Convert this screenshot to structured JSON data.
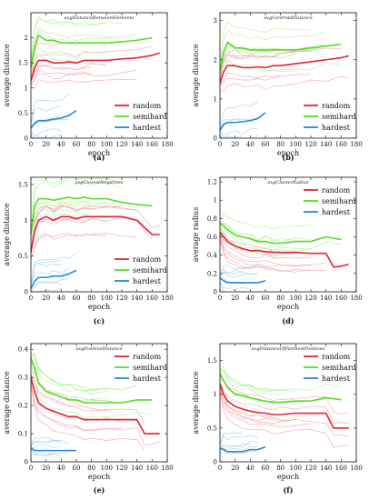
{
  "colors": {
    "random": "#e8213a",
    "semihard": "#55dd22",
    "hardest": "#2288dd"
  },
  "chart_data": [
    {
      "type": "line",
      "title": "avgDistanceBetweenElements",
      "caption": "(a)",
      "xlabel": "epoch",
      "ylabel": "average distance",
      "xlim": [
        0,
        180
      ],
      "ylim": [
        0,
        2.5
      ],
      "xticks": [
        "0",
        "20",
        "40",
        "60",
        "80",
        "100",
        "120",
        "140",
        "160",
        "180"
      ],
      "yticks": [
        "0",
        "0.5",
        "1",
        "1.5",
        "2"
      ],
      "ytick_values": [
        0,
        0.5,
        1,
        1.5,
        2
      ],
      "legend_position": "lower-right",
      "series": [
        {
          "name": "random",
          "x": [
            0,
            5,
            10,
            20,
            30,
            40,
            50,
            60,
            70,
            80,
            100,
            120,
            140,
            160,
            170
          ],
          "y": [
            1.15,
            1.4,
            1.55,
            1.55,
            1.5,
            1.5,
            1.52,
            1.5,
            1.55,
            1.55,
            1.55,
            1.58,
            1.6,
            1.65,
            1.7
          ]
        },
        {
          "name": "semihard",
          "x": [
            0,
            5,
            10,
            20,
            30,
            40,
            50,
            60,
            70,
            80,
            100,
            120,
            140,
            160
          ],
          "y": [
            1.4,
            1.8,
            2.05,
            1.95,
            1.95,
            1.9,
            1.9,
            1.9,
            1.9,
            1.9,
            1.9,
            1.92,
            1.95,
            2.0
          ]
        },
        {
          "name": "hardest",
          "x": [
            0,
            5,
            10,
            20,
            30,
            40,
            50,
            60
          ],
          "y": [
            0.2,
            0.3,
            0.35,
            0.35,
            0.38,
            0.4,
            0.45,
            0.55
          ]
        }
      ]
    },
    {
      "type": "line",
      "title": "avgCentroidDistance",
      "caption": "(b)",
      "xlabel": "epoch",
      "ylabel": "average distance",
      "xlim": [
        0,
        180
      ],
      "ylim": [
        0,
        3.2
      ],
      "xticks": [
        "0",
        "20",
        "40",
        "60",
        "80",
        "100",
        "120",
        "140",
        "160",
        "180"
      ],
      "yticks": [
        "0",
        "1",
        "2",
        "3"
      ],
      "ytick_values": [
        0,
        1,
        2,
        3
      ],
      "legend_position": "lower-right",
      "series": [
        {
          "name": "random",
          "x": [
            0,
            5,
            10,
            20,
            30,
            40,
            50,
            60,
            70,
            80,
            100,
            120,
            140,
            160,
            170
          ],
          "y": [
            1.4,
            1.7,
            1.85,
            1.85,
            1.8,
            1.8,
            1.82,
            1.8,
            1.85,
            1.85,
            1.9,
            1.95,
            2.0,
            2.05,
            2.1
          ]
        },
        {
          "name": "semihard",
          "x": [
            0,
            5,
            10,
            20,
            30,
            40,
            50,
            60,
            70,
            80,
            100,
            120,
            140,
            160
          ],
          "y": [
            1.7,
            2.2,
            2.45,
            2.3,
            2.3,
            2.25,
            2.25,
            2.25,
            2.25,
            2.25,
            2.25,
            2.3,
            2.35,
            2.4
          ]
        },
        {
          "name": "hardest",
          "x": [
            0,
            5,
            10,
            20,
            30,
            40,
            50,
            60
          ],
          "y": [
            0.2,
            0.35,
            0.4,
            0.4,
            0.42,
            0.45,
            0.5,
            0.65
          ]
        }
      ]
    },
    {
      "type": "line",
      "title": "avgClosestNegatives",
      "caption": "(c)",
      "xlabel": "epoch",
      "ylabel": "average distance",
      "xlim": [
        0,
        180
      ],
      "ylim": [
        0,
        1.6
      ],
      "xticks": [
        "0",
        "20",
        "40",
        "60",
        "80",
        "100",
        "120",
        "140",
        "160",
        "180"
      ],
      "yticks": [
        "0",
        "0.5",
        "1",
        "1.5"
      ],
      "ytick_values": [
        0,
        0.5,
        1,
        1.5
      ],
      "legend_position": "lower-right",
      "series": [
        {
          "name": "random",
          "x": [
            0,
            5,
            10,
            20,
            30,
            40,
            50,
            60,
            70,
            80,
            100,
            120,
            140,
            160,
            170
          ],
          "y": [
            0.55,
            0.85,
            1.0,
            1.05,
            1.0,
            1.05,
            1.05,
            1.02,
            1.05,
            1.05,
            1.05,
            1.05,
            1.0,
            0.8,
            0.8
          ]
        },
        {
          "name": "semihard",
          "x": [
            0,
            5,
            10,
            20,
            30,
            40,
            50,
            60,
            70,
            80,
            100,
            120,
            140,
            160
          ],
          "y": [
            0.8,
            1.2,
            1.3,
            1.3,
            1.28,
            1.3,
            1.32,
            1.3,
            1.32,
            1.3,
            1.3,
            1.25,
            1.22,
            1.2
          ]
        },
        {
          "name": "hardest",
          "x": [
            0,
            5,
            10,
            20,
            30,
            40,
            50,
            60
          ],
          "y": [
            0.05,
            0.15,
            0.2,
            0.2,
            0.22,
            0.22,
            0.25,
            0.3
          ]
        }
      ]
    },
    {
      "type": "line",
      "title": "avgClusterRadius",
      "caption": "(d)",
      "xlabel": "epoch",
      "ylabel": "average radius",
      "xlim": [
        0,
        180
      ],
      "ylim": [
        0,
        1.25
      ],
      "xticks": [
        "0",
        "20",
        "40",
        "60",
        "80",
        "100",
        "120",
        "140",
        "160",
        "180"
      ],
      "yticks": [
        "0",
        "0.2",
        "0.4",
        "0.6",
        "0.8",
        "1",
        "1.2"
      ],
      "ytick_values": [
        0,
        0.2,
        0.4,
        0.6,
        0.8,
        1,
        1.2
      ],
      "legend_position": "upper-right",
      "series": [
        {
          "name": "random",
          "x": [
            0,
            5,
            10,
            20,
            30,
            40,
            50,
            60,
            70,
            80,
            100,
            120,
            140,
            150,
            160,
            170
          ],
          "y": [
            0.65,
            0.6,
            0.55,
            0.5,
            0.47,
            0.45,
            0.45,
            0.44,
            0.43,
            0.43,
            0.43,
            0.42,
            0.42,
            0.27,
            0.28,
            0.3
          ]
        },
        {
          "name": "semihard",
          "x": [
            0,
            5,
            10,
            20,
            30,
            40,
            50,
            60,
            70,
            80,
            100,
            120,
            140,
            160
          ],
          "y": [
            0.75,
            0.72,
            0.68,
            0.62,
            0.6,
            0.58,
            0.55,
            0.55,
            0.53,
            0.53,
            0.55,
            0.55,
            0.6,
            0.57
          ]
        },
        {
          "name": "hardest",
          "x": [
            0,
            5,
            10,
            20,
            30,
            40,
            50,
            60
          ],
          "y": [
            0.15,
            0.12,
            0.1,
            0.1,
            0.1,
            0.1,
            0.1,
            0.12
          ]
        }
      ]
    },
    {
      "type": "line",
      "title": "avgPositiveDistance",
      "caption": "(e)",
      "xlabel": "epoch",
      "ylabel": "average distance",
      "xlim": [
        0,
        180
      ],
      "ylim": [
        0,
        0.42
      ],
      "xticks": [
        "0",
        "20",
        "40",
        "60",
        "80",
        "100",
        "120",
        "140",
        "160",
        "180"
      ],
      "yticks": [
        "0",
        "0.1",
        "0.2",
        "0.3",
        "0.4"
      ],
      "ytick_values": [
        0,
        0.1,
        0.2,
        0.3,
        0.4
      ],
      "legend_position": "upper-right",
      "series": [
        {
          "name": "random",
          "x": [
            0,
            5,
            10,
            20,
            30,
            40,
            50,
            60,
            70,
            80,
            100,
            120,
            140,
            150,
            160,
            170
          ],
          "y": [
            0.3,
            0.25,
            0.21,
            0.19,
            0.18,
            0.17,
            0.16,
            0.16,
            0.15,
            0.15,
            0.15,
            0.15,
            0.15,
            0.1,
            0.1,
            0.1
          ]
        },
        {
          "name": "semihard",
          "x": [
            0,
            5,
            10,
            20,
            30,
            40,
            50,
            60,
            70,
            80,
            100,
            120,
            140,
            160
          ],
          "y": [
            0.37,
            0.33,
            0.28,
            0.25,
            0.24,
            0.23,
            0.22,
            0.22,
            0.21,
            0.21,
            0.21,
            0.21,
            0.22,
            0.22
          ]
        },
        {
          "name": "hardest",
          "x": [
            0,
            5,
            10,
            20,
            30,
            40,
            50,
            60
          ],
          "y": [
            0.05,
            0.04,
            0.04,
            0.04,
            0.04,
            0.04,
            0.04,
            0.04
          ]
        }
      ]
    },
    {
      "type": "line",
      "title": "avgDistanceOfFarthestPositives",
      "caption": "(f)",
      "xlabel": "epoch",
      "ylabel": "average distance",
      "xlim": [
        0,
        180
      ],
      "ylim": [
        0,
        1.75
      ],
      "xticks": [
        "0",
        "20",
        "40",
        "60",
        "80",
        "100",
        "120",
        "140",
        "160",
        "180"
      ],
      "yticks": [
        "0",
        "0.5",
        "1",
        "1.5"
      ],
      "ytick_values": [
        0,
        0.5,
        1,
        1.5
      ],
      "legend_position": "upper-right",
      "series": [
        {
          "name": "random",
          "x": [
            0,
            5,
            10,
            20,
            30,
            40,
            50,
            60,
            70,
            80,
            100,
            120,
            140,
            150,
            160,
            170
          ],
          "y": [
            1.15,
            1.0,
            0.9,
            0.82,
            0.78,
            0.75,
            0.73,
            0.72,
            0.7,
            0.7,
            0.72,
            0.72,
            0.72,
            0.5,
            0.5,
            0.5
          ]
        },
        {
          "name": "semihard",
          "x": [
            0,
            5,
            10,
            20,
            30,
            40,
            50,
            60,
            70,
            80,
            100,
            120,
            140,
            160
          ],
          "y": [
            1.3,
            1.2,
            1.1,
            1.0,
            0.98,
            0.95,
            0.92,
            0.9,
            0.88,
            0.88,
            0.9,
            0.9,
            0.95,
            0.92
          ]
        },
        {
          "name": "hardest",
          "x": [
            0,
            5,
            10,
            20,
            30,
            40,
            50,
            60
          ],
          "y": [
            0.2,
            0.18,
            0.15,
            0.15,
            0.15,
            0.18,
            0.18,
            0.22
          ]
        }
      ]
    }
  ]
}
